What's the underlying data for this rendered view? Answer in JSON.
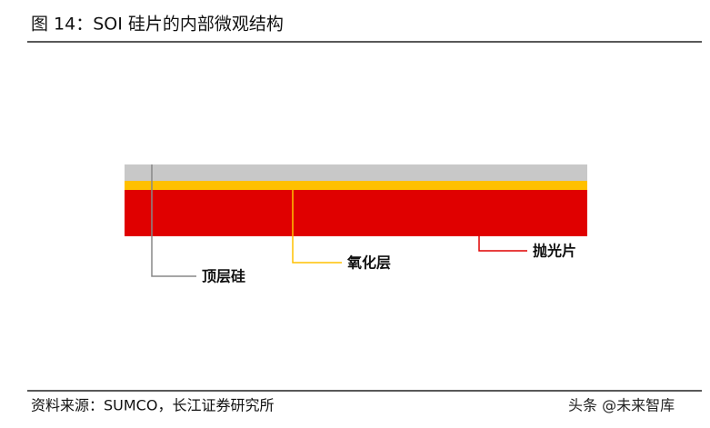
{
  "header": {
    "title": "图 14：SOI 硅片的内部微观结构"
  },
  "diagram": {
    "layers": [
      {
        "label": "顶层硅"
      },
      {
        "label": "氧化层"
      },
      {
        "label": "抛光片"
      }
    ]
  },
  "footer": {
    "source": "资料来源：SUMCO，长江证券研究所",
    "watermark": "头条 @未来智库"
  }
}
